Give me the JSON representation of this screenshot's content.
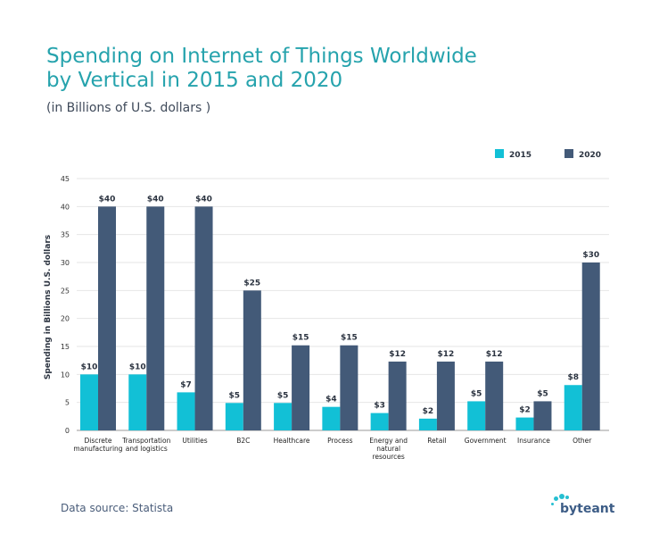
{
  "header": {
    "title_line1": "Spending on Internet of Things Worldwide",
    "title_line2": "by Vertical in 2015 and 2020",
    "subtitle": "(in Billions of U.S. dollars )"
  },
  "footer": {
    "source": "Data source: Statista",
    "logo_text": "byteant"
  },
  "colors": {
    "series_2015": "#12c0d6",
    "series_2020": "#435a78",
    "title": "#26a3ad",
    "grid": "#e6e6e6"
  },
  "chart_data": {
    "type": "bar",
    "title": "Spending on Internet of Things Worldwide by Vertical in 2015 and 2020",
    "subtitle": "(in Billions of U.S. dollars )",
    "xlabel": "",
    "ylabel": "Spending in Billions U.S. dollars",
    "ylim": [
      0,
      45
    ],
    "yticks": [
      0,
      5,
      10,
      15,
      20,
      25,
      30,
      35,
      40,
      45
    ],
    "grid": true,
    "legend_position": "top-right",
    "categories": [
      [
        "Discrete",
        "manufacturing"
      ],
      [
        "Transportation",
        "and logistics"
      ],
      [
        "Utilities"
      ],
      [
        "B2C"
      ],
      [
        "Healthcare"
      ],
      [
        "Process"
      ],
      [
        "Energy and",
        "natural",
        "resources"
      ],
      [
        "Retail"
      ],
      [
        "Government"
      ],
      [
        "Insurance"
      ],
      [
        "Other"
      ]
    ],
    "series": [
      {
        "name": "2015",
        "values": [
          10,
          10,
          6.8,
          4.9,
          4.9,
          4.2,
          3.1,
          2.1,
          5.2,
          2.3,
          8.1
        ],
        "labels": [
          "$10",
          "$10",
          "$7",
          "$5",
          "$5",
          "$4",
          "$3",
          "$2",
          "$5",
          "$2",
          "$8"
        ]
      },
      {
        "name": "2020",
        "values": [
          40,
          40,
          40,
          25,
          15.2,
          15.2,
          12.3,
          12.3,
          12.3,
          5.2,
          30
        ],
        "labels": [
          "$40",
          "$40",
          "$40",
          "$25",
          "$15",
          "$15",
          "$12",
          "$12",
          "$12",
          "$5",
          "$30"
        ]
      }
    ]
  }
}
